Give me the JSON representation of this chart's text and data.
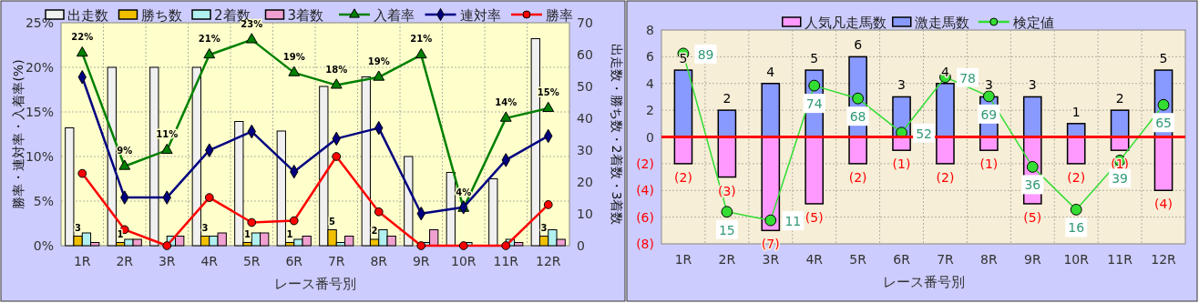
{
  "chart_data": [
    {
      "type": "bar",
      "categories": [
        "1R",
        "2R",
        "3R",
        "4R",
        "5R",
        "6R",
        "7R",
        "8R",
        "9R",
        "10R",
        "11R",
        "12R"
      ],
      "xlabel": "レース番号別",
      "ylabel": "勝率・連対率・入着率(%)",
      "y2label": "出走数・勝ち数・2着数・3着数",
      "ylim": [
        0,
        25
      ],
      "yticks": [
        {
          "value": 0,
          "label": "0%"
        },
        {
          "value": 5,
          "label": "5%"
        },
        {
          "value": 10,
          "label": "10%"
        },
        {
          "value": 15,
          "label": "15%"
        },
        {
          "value": 20,
          "label": "20%"
        },
        {
          "value": 25,
          "label": "25%"
        }
      ],
      "y2lim": [
        0,
        70
      ],
      "y2ticks": [
        0,
        10,
        20,
        30,
        40,
        50,
        60,
        70
      ],
      "grid": true,
      "legend": "top",
      "series": [
        {
          "name": "出走数",
          "type": "bar",
          "axis": "y2",
          "color": "#f0f0f0",
          "values": [
            37,
            56,
            56,
            56,
            39,
            36,
            50,
            53,
            28,
            23,
            21,
            65
          ]
        },
        {
          "name": "勝ち数",
          "type": "bar",
          "axis": "y2",
          "color": "#f0c000",
          "values": [
            3,
            1,
            0,
            3,
            1,
            1,
            5,
            2,
            0,
            0,
            0,
            3
          ],
          "value_labels": [
            "3",
            "1",
            null,
            "3",
            "1",
            "1",
            "5",
            "2",
            null,
            null,
            null,
            "3"
          ]
        },
        {
          "name": "2着数",
          "type": "bar",
          "axis": "y2",
          "color": "#b0f0f0",
          "values": [
            4,
            2,
            3,
            3,
            4,
            2,
            1,
            5,
            1,
            1,
            2,
            5
          ]
        },
        {
          "name": "3着数",
          "type": "bar",
          "axis": "y2",
          "color": "#f0a0d0",
          "values": [
            1,
            2,
            3,
            4,
            4,
            3,
            3,
            3,
            5,
            0,
            1,
            2
          ]
        },
        {
          "name": "入着率",
          "type": "line",
          "color": "#008000",
          "marker": "triangle",
          "values": [
            21.6,
            8.9,
            10.7,
            21.4,
            23.1,
            19.4,
            18.0,
            18.9,
            21.4,
            4.2,
            14.3,
            15.4
          ],
          "value_labels": [
            "22%",
            "9%",
            "11%",
            "21%",
            "23%",
            "19%",
            "18%",
            "19%",
            "21%",
            "4%",
            "14%",
            "15%"
          ]
        },
        {
          "name": "連対率",
          "type": "line",
          "color": "#000080",
          "marker": "diamond",
          "values": [
            18.9,
            5.4,
            5.4,
            10.7,
            12.8,
            8.3,
            12.0,
            13.2,
            3.6,
            4.3,
            9.6,
            12.3
          ]
        },
        {
          "name": "勝率",
          "type": "line",
          "color": "#ff0000",
          "marker": "circle",
          "values": [
            8.1,
            1.8,
            0,
            5.4,
            2.6,
            2.8,
            10.0,
            3.8,
            0,
            0,
            0,
            4.6
          ]
        }
      ]
    },
    {
      "type": "bar",
      "stacked": true,
      "categories": [
        "1R",
        "2R",
        "3R",
        "4R",
        "5R",
        "6R",
        "7R",
        "8R",
        "9R",
        "10R",
        "11R",
        "12R"
      ],
      "xlabel": "レース番号別",
      "ylim": [
        -8,
        8
      ],
      "yticks": [
        {
          "value": -8,
          "label": "(8)"
        },
        {
          "value": -6,
          "label": "(6)"
        },
        {
          "value": -4,
          "label": "(4)"
        },
        {
          "value": -2,
          "label": "(2)"
        },
        0,
        2,
        4,
        6,
        8
      ],
      "y2lim": [
        0,
        100
      ],
      "grid": true,
      "legend": "top",
      "ref_lines": [
        {
          "axis": "y",
          "value": 0,
          "color": "#ff0000"
        }
      ],
      "series": [
        {
          "name": "人気凡走馬数",
          "type": "bar",
          "color": "#ff99ff",
          "values": [
            -2,
            -3,
            -7,
            -5,
            -2,
            -1,
            -2,
            -1,
            -5,
            -2,
            -1,
            -4
          ],
          "value_labels": [
            "(2)",
            "(3)",
            "(7)",
            "(5)",
            "(2)",
            "(1)",
            "(2)",
            "(1)",
            "(5)",
            "(2)",
            "(1)",
            "(4)"
          ]
        },
        {
          "name": "激走馬数",
          "type": "bar",
          "color": "#8899ff",
          "values": [
            5,
            2,
            4,
            5,
            6,
            3,
            4,
            3,
            3,
            1,
            2,
            5
          ],
          "value_labels": [
            "5",
            "2",
            "4",
            "5",
            "6",
            "3",
            "4",
            "3",
            "3",
            "1",
            "2",
            "5"
          ]
        },
        {
          "name": "検定値",
          "type": "line",
          "axis": "y2",
          "color": "#33dd33",
          "marker": "circle",
          "values": [
            89,
            15,
            11,
            74,
            68,
            52,
            78,
            69,
            36,
            16,
            39,
            65
          ],
          "value_labels": [
            "89",
            "15",
            "11",
            "74",
            "68",
            "52",
            "78",
            "69",
            "36",
            "16",
            "39",
            "65"
          ]
        }
      ]
    }
  ]
}
